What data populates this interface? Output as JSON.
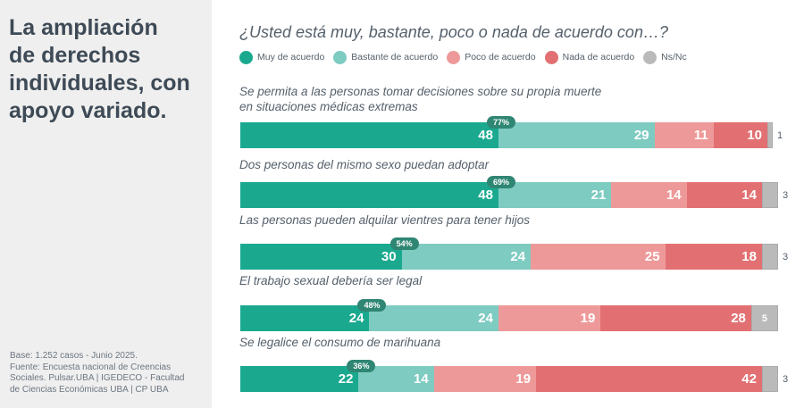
{
  "headline": "La ampliación de derechos individuales, con apoyo variado.",
  "headline_lines": [
    "La ampliación",
    "de derechos",
    "individuales, con",
    "apoyo variado."
  ],
  "footnote_lines": [
    "Base: 1.252 casos - Junio 2025.",
    "Fuente: Encuesta nacional de Creencias",
    "Sociales. Pulsar.UBA | IGEDECO - Facultad",
    "de Ciencias Económicas UBA | CP UBA"
  ],
  "colors": {
    "muy": "#1aa98f",
    "bastante": "#7ecbc1",
    "poco": "#ee9999",
    "nada": "#e27072",
    "nsnc": "#bababa",
    "badge": "#2f8673",
    "left_panel": "#efefef"
  },
  "chart_data": {
    "type": "bar",
    "orientation": "horizontal-stacked",
    "title": "¿Usted está muy, bastante, poco o nada de acuerdo con…?",
    "xlabel": "",
    "ylabel": "",
    "xlim": [
      0,
      100
    ],
    "grid": false,
    "legend_position": "top-left",
    "unit": "%",
    "legend": [
      {
        "key": "muy",
        "label": "Muy de acuerdo"
      },
      {
        "key": "bastante",
        "label": "Bastante de acuerdo"
      },
      {
        "key": "poco",
        "label": "Poco de acuerdo"
      },
      {
        "key": "nada",
        "label": "Nada de acuerdo"
      },
      {
        "key": "nsnc",
        "label": "Ns/Nc"
      }
    ],
    "categories": [
      {
        "label_lines": [
          "Se permita a las personas tomar decisiones sobre su propia muerte",
          "en situaciones médicas extremas"
        ],
        "values": {
          "muy": 48,
          "bastante": 29,
          "poco": 11,
          "nada": 10,
          "nsnc": 1
        },
        "agreement_total": "77%"
      },
      {
        "label_lines": [
          "Dos personas del mismo sexo puedan adoptar"
        ],
        "values": {
          "muy": 48,
          "bastante": 21,
          "poco": 14,
          "nada": 14,
          "nsnc": 3
        },
        "agreement_total": "69%"
      },
      {
        "label_lines": [
          "Las personas pueden alquilar vientres para tener hijos"
        ],
        "values": {
          "muy": 30,
          "bastante": 24,
          "poco": 25,
          "nada": 18,
          "nsnc": 3
        },
        "agreement_total": "54%"
      },
      {
        "label_lines": [
          "El trabajo sexual debería ser legal"
        ],
        "values": {
          "muy": 24,
          "bastante": 24,
          "poco": 19,
          "nada": 28,
          "nsnc": 5
        },
        "agreement_total": "48%"
      },
      {
        "label_lines": [
          "Se legalice el consumo de marihuana"
        ],
        "values": {
          "muy": 22,
          "bastante": 14,
          "poco": 19,
          "nada": 42,
          "nsnc": 3
        },
        "agreement_total": "36%"
      }
    ]
  }
}
